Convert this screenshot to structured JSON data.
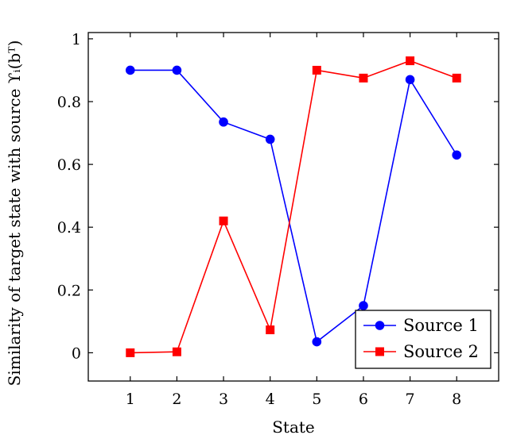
{
  "chart_data": {
    "type": "line",
    "title": "",
    "xlabel": "State",
    "ylabel": "Similarity of target state with source ϒᵢ(bᵀ)",
    "x": [
      1,
      2,
      3,
      4,
      5,
      6,
      7,
      8
    ],
    "xlim": [
      0.1,
      8.9
    ],
    "ylim": [
      -0.09,
      1.02
    ],
    "xticks": [
      "1",
      "2",
      "3",
      "4",
      "5",
      "6",
      "7",
      "8"
    ],
    "yticks": [
      "0",
      "0.2",
      "0.4",
      "0.6",
      "0.8",
      "1"
    ],
    "grid": false,
    "legend_position": "bottom-right",
    "series": [
      {
        "name": "Source 1",
        "color": "#0000ff",
        "marker": "circle",
        "values": [
          0.9,
          0.9,
          0.735,
          0.68,
          0.035,
          0.15,
          0.87,
          0.63
        ]
      },
      {
        "name": "Source 2",
        "color": "#ff0000",
        "marker": "square",
        "values": [
          0.0,
          0.003,
          0.42,
          0.073,
          0.9,
          0.875,
          0.93,
          0.875
        ]
      }
    ]
  }
}
